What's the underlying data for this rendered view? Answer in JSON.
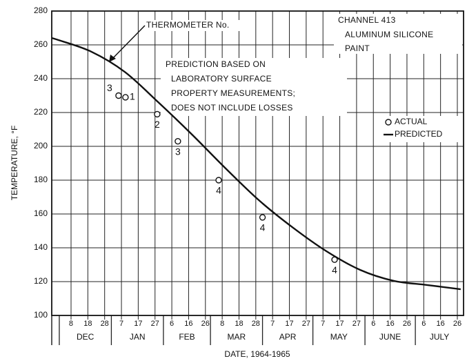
{
  "chart_data": {
    "type": "line",
    "x_label": "DATE, 1964-1965",
    "y_label": "TEMPERATURE, °F",
    "xlim": [
      -3.5,
      241.7
    ],
    "ylim": [
      100,
      280
    ],
    "yticks": [
      100,
      120,
      140,
      160,
      180,
      200,
      220,
      240,
      260,
      280
    ],
    "xticks": [
      {
        "value": 8,
        "label": "8"
      },
      {
        "value": 18,
        "label": "18"
      },
      {
        "value": 28,
        "label": "28"
      },
      {
        "value": 38,
        "label": "7"
      },
      {
        "value": 48,
        "label": "17"
      },
      {
        "value": 58,
        "label": "27"
      },
      {
        "value": 68,
        "label": "6"
      },
      {
        "value": 78,
        "label": "16"
      },
      {
        "value": 88,
        "label": "26"
      },
      {
        "value": 98,
        "label": "8"
      },
      {
        "value": 108,
        "label": "18"
      },
      {
        "value": 118,
        "label": "28"
      },
      {
        "value": 128,
        "label": "7"
      },
      {
        "value": 138,
        "label": "17"
      },
      {
        "value": 148,
        "label": "27"
      },
      {
        "value": 158,
        "label": "7"
      },
      {
        "value": 168,
        "label": "17"
      },
      {
        "value": 178,
        "label": "27"
      },
      {
        "value": 188,
        "label": "6"
      },
      {
        "value": 198,
        "label": "16"
      },
      {
        "value": 208,
        "label": "26"
      },
      {
        "value": 218,
        "label": "6"
      },
      {
        "value": 228,
        "label": "16"
      },
      {
        "value": 238,
        "label": "26"
      }
    ],
    "months": [
      "DEC",
      "JAN",
      "FEB",
      "MAR",
      "APR",
      "MAY",
      "JUNE",
      "JULY"
    ],
    "month_bounds": [
      1,
      32,
      63,
      91,
      122,
      152,
      183,
      213,
      244
    ],
    "grid": true,
    "series": [
      {
        "name": "ACTUAL",
        "type": "scatter",
        "color": "#111",
        "x": [
          36.3,
          40.4,
          59.3,
          71.6,
          95.9,
          122,
          164.9
        ],
        "values": [
          230,
          229,
          219,
          203,
          180,
          158,
          133
        ],
        "point_labels": [
          "3",
          "1",
          "2",
          "3",
          "4",
          "4",
          "4"
        ]
      },
      {
        "name": "PREDICTED",
        "type": "line",
        "color": "#111",
        "x": [
          -3.5,
          0,
          20,
          40,
          60,
          80,
          100,
          120,
          140,
          160,
          180,
          200,
          220,
          240
        ],
        "values": [
          264,
          263,
          256,
          244,
          226,
          207,
          187,
          168,
          152,
          138,
          127,
          120.5,
          118,
          115.5
        ]
      }
    ],
    "annotations": {
      "thermometer": "THERMOMETER No.",
      "channel": [
        "CHANNEL 413",
        "ALUMINUM SILICONE",
        "PAINT"
      ],
      "prediction": [
        "PREDICTION BASED ON",
        "LABORATORY SURFACE",
        "PROPERTY MEASUREMENTS;",
        "DOES NOT INCLUDE LOSSES"
      ]
    }
  }
}
